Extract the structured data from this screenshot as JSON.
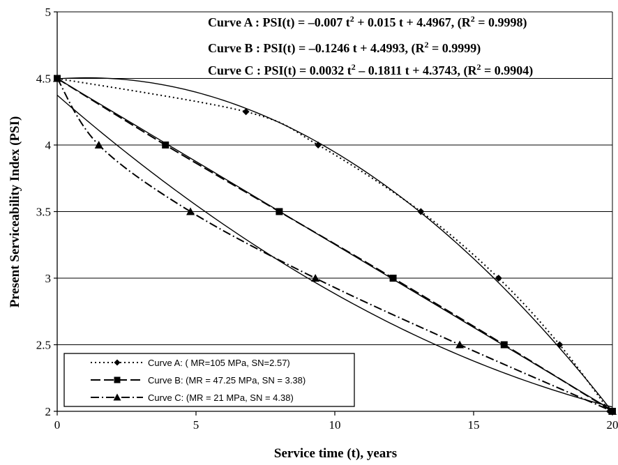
{
  "chart_data": {
    "type": "line",
    "xlabel": "Service  time (t), years",
    "ylabel": "Present Serviceability Index (PSI)",
    "xlim": [
      0,
      20
    ],
    "ylim": [
      2,
      5
    ],
    "x_ticks": [
      "0",
      "5",
      "10",
      "15",
      "20"
    ],
    "y_ticks": [
      "2",
      "2.5",
      "3",
      "3.5",
      "4",
      "4.5",
      "5"
    ],
    "grid": "horizontal",
    "legend_position": "bottom-left",
    "equations": [
      {
        "prefix": "Curve A : PSI(t) = –0.007 t",
        "sup": "2",
        "middle": " + 0.015 t + 4.4967, (R",
        "r2": "2",
        "suffix": " = 0.9998)"
      },
      {
        "prefix": "Curve B : PSI(t) = –0.1246 t + 4.4993, (R",
        "sup": "",
        "middle": "",
        "r2": "2",
        "suffix": " = 0.9999)"
      },
      {
        "prefix": "Curve C : PSI(t) = 0.0032 t",
        "sup": "2",
        "middle": " – 0.1811 t + 4.3743, (R",
        "r2": "2",
        "suffix": " = 0.9904)"
      }
    ],
    "series": [
      {
        "name": "Curve A: ( MR=105 MPa, SN=2.57)",
        "marker": "diamond",
        "dash": "2,4",
        "x": [
          0,
          6.8,
          9.4,
          13.1,
          15.9,
          18.1,
          19.9
        ],
        "y": [
          4.5,
          4.25,
          4.0,
          3.5,
          3.0,
          2.5,
          2.0
        ],
        "fit": {
          "a": -0.007,
          "b": 0.015,
          "c": 4.4967
        }
      },
      {
        "name": "Curve B: (MR = 47.25 MPa, SN = 3.38)",
        "marker": "square",
        "dash": "14,5",
        "x": [
          0,
          3.9,
          8.0,
          12.1,
          16.1,
          20
        ],
        "y": [
          4.5,
          4.0,
          3.5,
          3.0,
          2.5,
          2.0
        ],
        "fit": {
          "a": 0,
          "b": -0.1246,
          "c": 4.4993
        }
      },
      {
        "name": "Curve C: (MR = 21 MPa, SN = 4.38)",
        "marker": "triangle",
        "dash": "12,4,2,4",
        "x": [
          0,
          1.5,
          4.8,
          9.3,
          14.5,
          20
        ],
        "y": [
          4.5,
          4.0,
          3.5,
          3.0,
          2.5,
          2.0
        ],
        "fit": {
          "a": 0.0032,
          "b": -0.1811,
          "c": 4.3743
        }
      }
    ]
  }
}
